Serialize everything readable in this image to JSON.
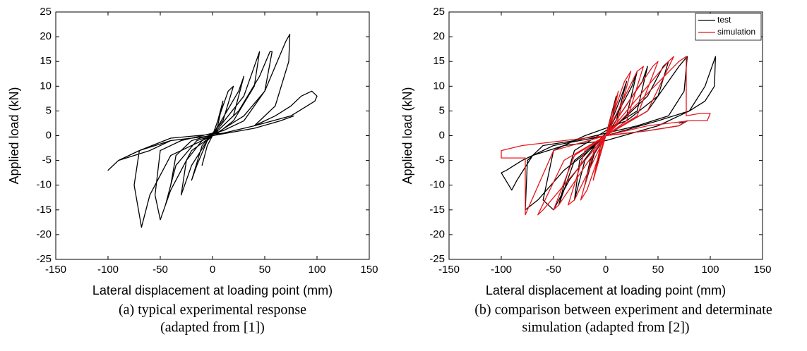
{
  "chart_data": [
    {
      "type": "line",
      "xlabel": "Lateral displacement at loading point (mm)",
      "ylabel": "Applied load (kN)",
      "caption": [
        "(a) typical experimental response",
        "(adapted from [1])"
      ],
      "xlim": [
        -150,
        150
      ],
      "ylim": [
        -25,
        25
      ],
      "xticks": [
        -150,
        -100,
        -50,
        0,
        50,
        100,
        150
      ],
      "yticks": [
        -25,
        -20,
        -15,
        -10,
        -5,
        0,
        5,
        10,
        15,
        20,
        25
      ],
      "legend": false,
      "series": [
        {
          "color": "#000000",
          "x": [
            0,
            5,
            10,
            5,
            0,
            -5,
            -10,
            -5,
            0,
            15,
            20,
            10,
            0,
            -10,
            -20,
            -15,
            -5,
            0,
            25,
            30,
            20,
            5,
            -10,
            -25,
            -30,
            -20,
            -5,
            0,
            30,
            40,
            45,
            40,
            20,
            5,
            -20,
            -35,
            -40,
            -45,
            -35,
            -15,
            0,
            25,
            45,
            55,
            57,
            50,
            30,
            10,
            -30,
            -50,
            -55,
            -50,
            -40,
            -20,
            0,
            30,
            50,
            70,
            74,
            73,
            60,
            40,
            10,
            -40,
            -70,
            -75,
            -68,
            -60,
            -40,
            -10,
            0,
            40,
            60,
            75,
            85,
            95,
            100,
            98,
            75,
            40,
            0,
            -40,
            -60,
            -75,
            -90,
            -100,
            -90,
            -70,
            -40,
            0,
            40,
            65,
            78
          ],
          "values": [
            0,
            3,
            7,
            2,
            0,
            -2,
            -6,
            -2,
            0,
            9,
            10,
            3,
            0.5,
            -2,
            -9,
            -6,
            -1,
            0,
            9,
            12,
            4,
            1,
            -1,
            -5,
            -12,
            -6,
            -1,
            0,
            8,
            14,
            17,
            10,
            3,
            0.5,
            -1,
            -4,
            -10,
            -14,
            -6,
            -1,
            0,
            5,
            12,
            17,
            17,
            9,
            3,
            1,
            -1,
            -3,
            -12,
            -17,
            -11,
            -3,
            0,
            4,
            9,
            19,
            20.5,
            15,
            6,
            2,
            0.5,
            -0.5,
            -3,
            -10,
            -18.5,
            -12,
            -4,
            -1,
            0,
            2,
            4,
            6,
            8,
            9,
            8,
            7,
            4,
            2,
            0,
            -1,
            -3,
            -4,
            -5,
            -7,
            -5,
            -3,
            -1,
            0,
            1.5,
            3,
            4
          ]
        }
      ]
    },
    {
      "type": "line",
      "xlabel": "Lateral displacement at loading point (mm)",
      "ylabel": "Applied load (kN)",
      "caption": [
        "(b) comparison between experiment and determinate",
        "simulation (adapted from [2])"
      ],
      "xlim": [
        -150,
        150
      ],
      "ylim": [
        -25,
        25
      ],
      "xticks": [
        -150,
        -100,
        -50,
        0,
        50,
        100,
        150
      ],
      "yticks": [
        -25,
        -20,
        -15,
        -10,
        -5,
        0,
        5,
        10,
        15,
        20,
        25
      ],
      "legend": "upper right",
      "series": [
        {
          "name": "test",
          "color": "#000000",
          "x": [
            0,
            5,
            10,
            5,
            0,
            -5,
            -10,
            -5,
            0,
            15,
            20,
            10,
            0,
            -15,
            -20,
            -10,
            0,
            25,
            30,
            20,
            0,
            -25,
            -30,
            -20,
            0,
            35,
            40,
            30,
            0,
            -30,
            -40,
            -45,
            -30,
            0,
            40,
            55,
            60,
            50,
            20,
            -20,
            -50,
            -60,
            -50,
            -35,
            -10,
            0,
            40,
            70,
            78,
            75,
            60,
            30,
            -30,
            -60,
            -75,
            -77,
            -65,
            -40,
            -10,
            0,
            50,
            80,
            95,
            105,
            104,
            95,
            80,
            50,
            0,
            -40,
            -70,
            -85,
            -90,
            -100,
            -95,
            -80,
            -50,
            0,
            40,
            70,
            78,
            70
          ],
          "values": [
            0,
            4,
            8,
            2,
            0,
            -3,
            -7,
            -2,
            0,
            8,
            11,
            3,
            0,
            -5,
            -10,
            -3,
            0,
            10,
            13,
            4,
            0.5,
            -5,
            -13,
            -5,
            0,
            11,
            14,
            5,
            1,
            -3,
            -10,
            -14,
            -5,
            0,
            8,
            14,
            15,
            8,
            3,
            0,
            -3,
            -13,
            -15,
            -9,
            -2,
            0,
            5,
            14,
            16,
            9,
            4,
            2,
            -1,
            -2,
            -5,
            -15,
            -13,
            -7,
            -2,
            0,
            3,
            5,
            10,
            16,
            10,
            7,
            5,
            2,
            -1,
            -2,
            -4,
            -9,
            -11,
            -7.5,
            -7,
            -5,
            -2,
            0,
            1,
            2,
            3,
            2.5
          ]
        },
        {
          "name": "simulation",
          "color": "#e8151b",
          "x": [
            0,
            8,
            12,
            4,
            0,
            -8,
            -12,
            -4,
            0,
            18,
            24,
            10,
            0,
            -18,
            -24,
            -10,
            0,
            30,
            36,
            20,
            0,
            -30,
            -36,
            -20,
            0,
            45,
            50,
            30,
            0,
            -45,
            -50,
            -30,
            0,
            60,
            65,
            40,
            0,
            -60,
            -65,
            -40,
            0,
            70,
            77,
            77,
            90,
            100,
            97,
            80,
            40,
            0,
            -50,
            -77,
            -77,
            -90,
            -100,
            -100,
            -80,
            -40,
            0,
            40,
            70,
            77
          ],
          "values": [
            0,
            6,
            9,
            1,
            0,
            -6,
            -9,
            -1,
            0,
            11,
            13,
            2,
            0,
            -11,
            -13,
            -2,
            0,
            13,
            14,
            3,
            0,
            -13,
            -14,
            -3,
            0,
            14,
            15,
            4,
            0,
            -14,
            -15,
            -4,
            0,
            15,
            16,
            5,
            0,
            -15,
            -16,
            -5,
            0,
            15,
            16,
            4,
            4.5,
            4.5,
            3,
            3,
            2,
            0,
            -3,
            -16,
            -4.5,
            -4.5,
            -4.5,
            -3,
            -2,
            -1,
            0,
            1,
            2,
            3
          ]
        }
      ]
    }
  ]
}
